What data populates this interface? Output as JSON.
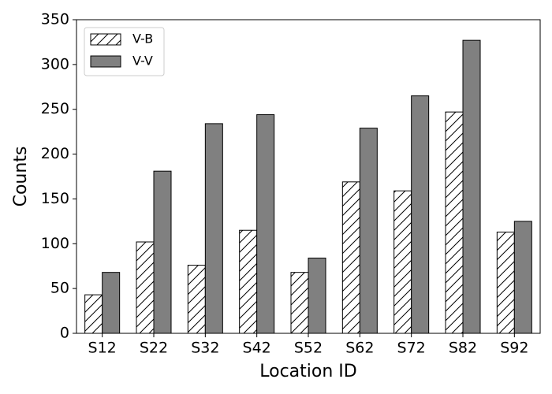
{
  "chart_data": {
    "type": "bar",
    "x_label": "Location ID",
    "y_label": "Counts",
    "categories": [
      "S12",
      "S22",
      "S32",
      "S42",
      "S52",
      "S62",
      "S72",
      "S82",
      "S92"
    ],
    "series": [
      {
        "name": "V-B",
        "color": "#ffffff",
        "hatch": "/",
        "values": [
          43,
          102,
          76,
          115,
          68,
          169,
          159,
          247,
          113
        ]
      },
      {
        "name": "V-V",
        "color": "#808080",
        "values": [
          68,
          181,
          234,
          244,
          84,
          229,
          265,
          327,
          125
        ]
      }
    ],
    "ylim": [
      0,
      350
    ],
    "yticks": [
      0,
      50,
      100,
      150,
      200,
      250,
      300,
      350
    ],
    "legend": "upper left"
  }
}
